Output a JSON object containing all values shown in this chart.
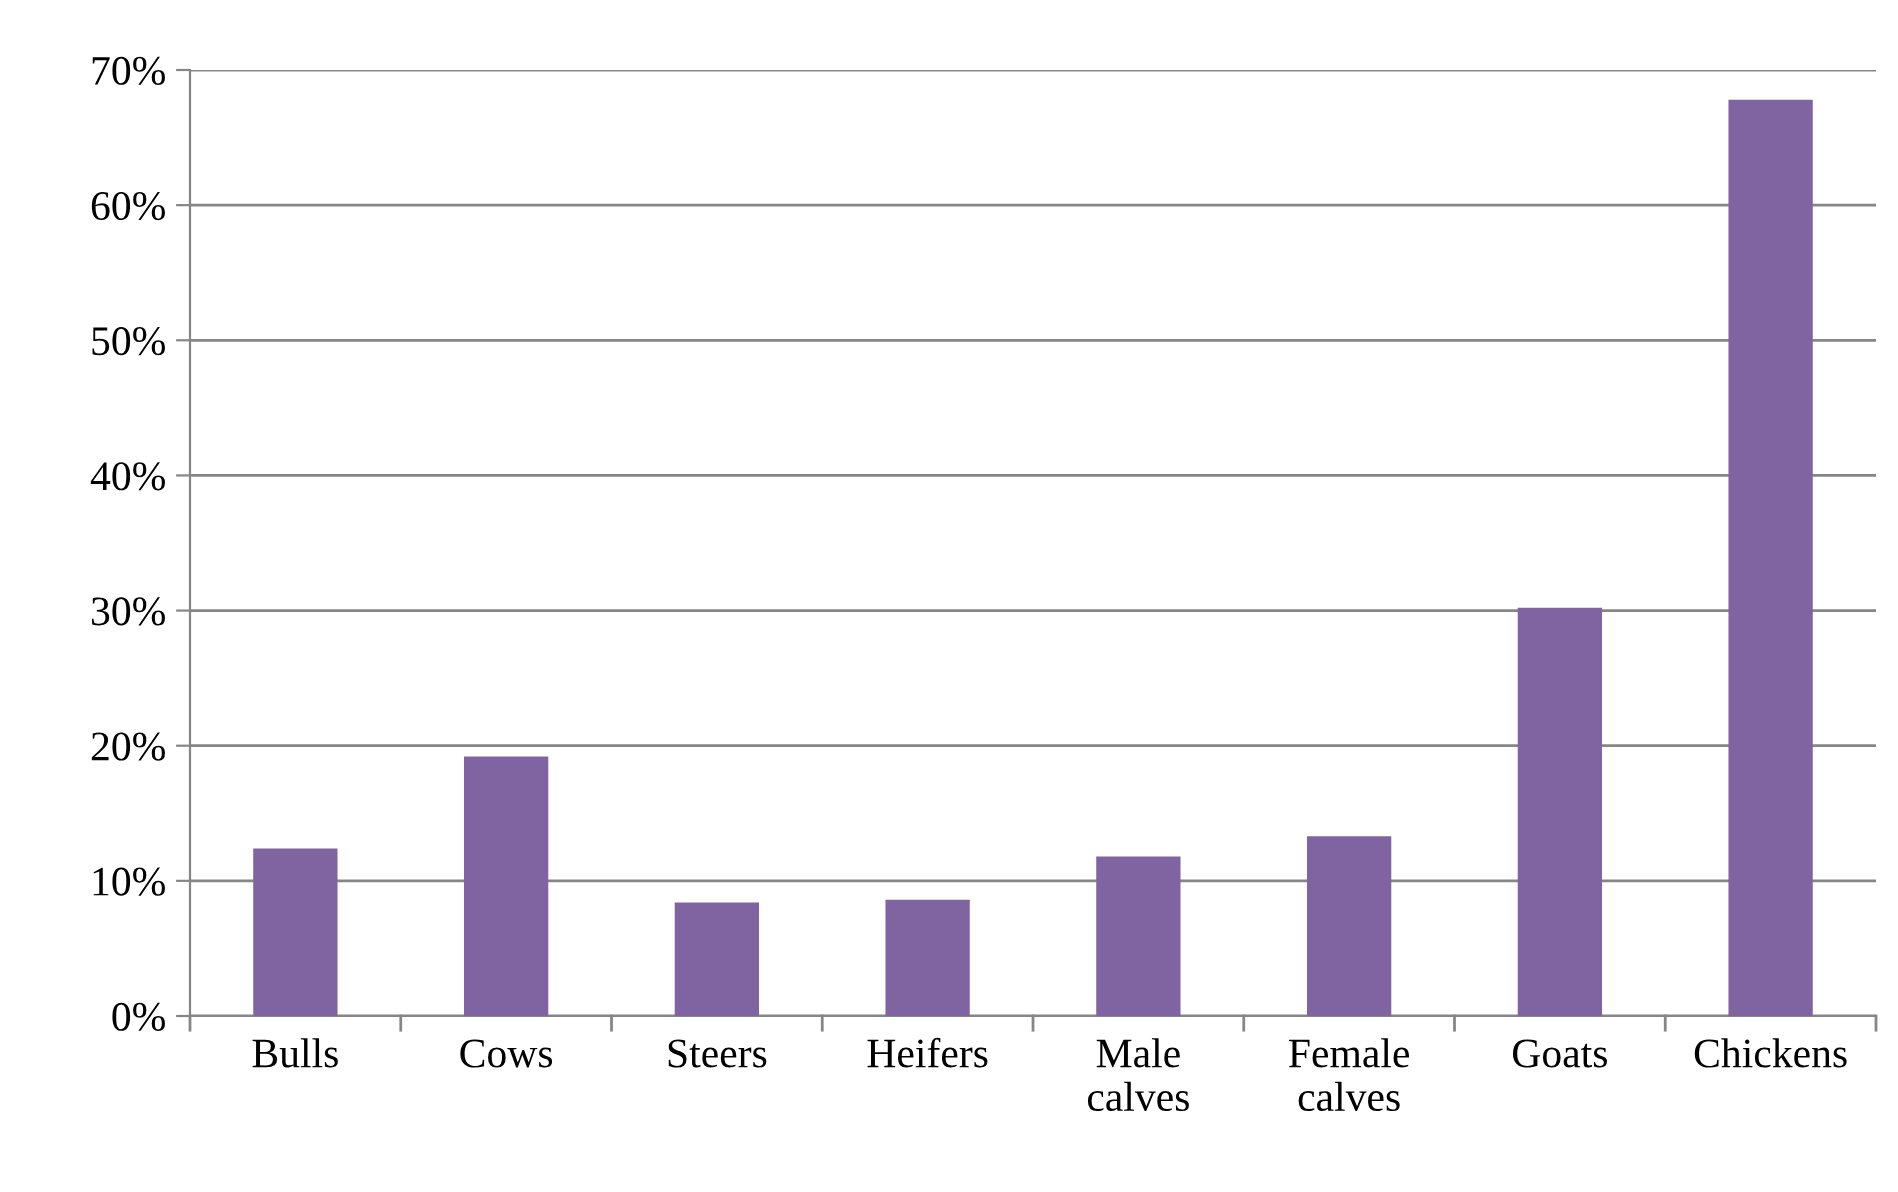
{
  "chart_data": {
    "type": "bar",
    "categories": [
      "Bulls",
      "Cows",
      "Steers",
      "Heifers",
      "Male\ncalves",
      "Female\ncalves",
      "Goats",
      "Chickens"
    ],
    "values": [
      12.4,
      19.2,
      8.4,
      8.6,
      11.8,
      13.3,
      30.2,
      67.8
    ],
    "color": "#8064a2",
    "ylim": [
      0,
      70
    ],
    "yticks": [
      {
        "value": 0,
        "label": "0%"
      },
      {
        "value": 10,
        "label": "10%"
      },
      {
        "value": 20,
        "label": "20%"
      },
      {
        "value": 30,
        "label": "30%"
      },
      {
        "value": 40,
        "label": "40%"
      },
      {
        "value": 50,
        "label": "50%"
      },
      {
        "value": 60,
        "label": "60%"
      },
      {
        "value": 70,
        "label": "70%"
      }
    ],
    "grid": "y",
    "legend": false
  }
}
